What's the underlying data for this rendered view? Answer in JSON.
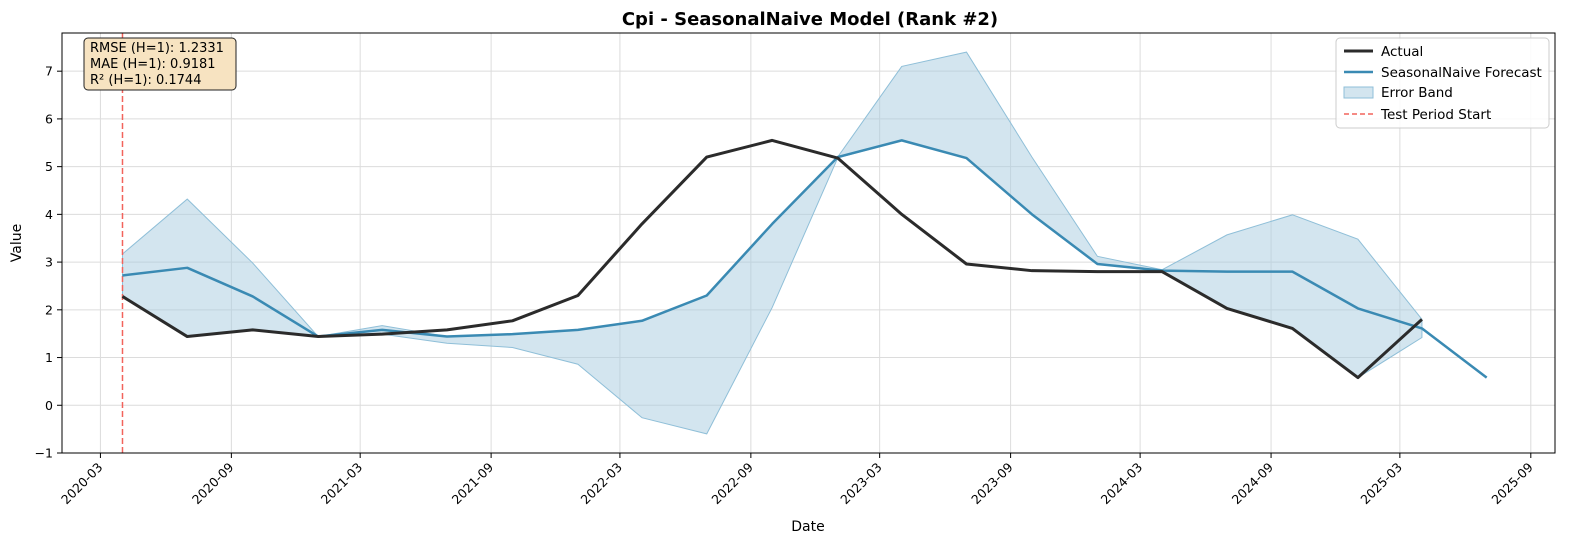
{
  "chart_data": {
    "type": "line",
    "title": "Cpi - SeasonalNaive Model (Rank #2)",
    "xlabel": "Date",
    "ylabel": "Value",
    "ylim": [
      -1,
      7.8
    ],
    "xlim": [
      "2020-01-07",
      "2025-10-05"
    ],
    "grid": true,
    "legend_position": "top-right",
    "x_ticks": [
      "2020-03",
      "2020-09",
      "2021-03",
      "2021-09",
      "2022-03",
      "2022-09",
      "2023-03",
      "2023-09",
      "2024-03",
      "2024-09",
      "2025-03",
      "2025-09"
    ],
    "y_ticks": [
      -1,
      0,
      1,
      2,
      3,
      4,
      5,
      6,
      7
    ],
    "colors": {
      "actual": "#2b2b2b",
      "forecast": "#3a8ab3",
      "band_fill": "#a8cce0",
      "band_edge": "#8fbfd8",
      "test_start": "#f2635c",
      "grid": "#dcdcdc",
      "metrics_box": "#f7e3c1"
    },
    "series": [
      {
        "name": "Actual",
        "x": [
          "2020-04-01",
          "2020-07-01",
          "2020-10-01",
          "2021-01-01",
          "2021-04-01",
          "2021-07-01",
          "2021-10-01",
          "2022-01-01",
          "2022-04-01",
          "2022-07-01",
          "2022-10-01",
          "2023-01-01",
          "2023-04-01",
          "2023-07-01",
          "2023-10-01",
          "2024-01-01",
          "2024-04-01",
          "2024-07-01",
          "2024-10-01",
          "2025-01-01",
          "2025-04-01"
        ],
        "y": [
          2.28,
          1.44,
          1.58,
          1.44,
          1.49,
          1.58,
          1.77,
          2.3,
          3.8,
          5.2,
          5.55,
          5.18,
          4.0,
          2.96,
          2.82,
          2.8,
          2.8,
          2.03,
          1.61,
          0.58,
          1.8
        ]
      },
      {
        "name": "SeasonalNaive Forecast",
        "x": [
          "2020-04-01",
          "2020-07-01",
          "2020-10-01",
          "2021-01-01",
          "2021-04-01",
          "2021-07-01",
          "2021-10-01",
          "2022-01-01",
          "2022-04-01",
          "2022-07-01",
          "2022-10-01",
          "2023-01-01",
          "2023-04-01",
          "2023-07-01",
          "2023-10-01",
          "2024-01-01",
          "2024-04-01",
          "2024-07-01",
          "2024-10-01",
          "2025-01-01",
          "2025-04-01",
          "2025-07-01"
        ],
        "y": [
          2.72,
          2.88,
          2.28,
          1.44,
          1.58,
          1.44,
          1.49,
          1.58,
          1.77,
          2.3,
          3.8,
          5.2,
          5.55,
          5.18,
          4.0,
          2.96,
          2.82,
          2.8,
          2.8,
          2.03,
          1.61,
          0.58
        ]
      }
    ],
    "error_band": {
      "name": "Error Band",
      "x": [
        "2020-04-01",
        "2020-07-01",
        "2020-10-01",
        "2021-01-01",
        "2021-04-01",
        "2021-07-01",
        "2021-10-01",
        "2022-01-01",
        "2022-04-01",
        "2022-07-01",
        "2022-10-01",
        "2023-01-01",
        "2023-04-01",
        "2023-07-01",
        "2023-10-01",
        "2024-01-01",
        "2024-04-01",
        "2024-07-01",
        "2024-10-01",
        "2025-01-01",
        "2025-04-01"
      ],
      "upper": [
        3.17,
        4.32,
        2.98,
        1.44,
        1.67,
        1.44,
        1.49,
        1.58,
        1.77,
        2.3,
        3.8,
        5.2,
        7.1,
        7.4,
        5.2,
        3.12,
        2.84,
        3.57,
        3.99,
        3.48,
        1.8
      ],
      "lower": [
        2.28,
        1.44,
        1.58,
        1.44,
        1.49,
        1.3,
        1.21,
        0.86,
        -0.26,
        -0.6,
        2.05,
        5.18,
        5.55,
        5.18,
        4.0,
        2.96,
        2.8,
        2.03,
        1.61,
        0.58,
        1.42
      ]
    },
    "test_period_start": "2020-04-01",
    "legend": {
      "actual": "Actual",
      "forecast": "SeasonalNaive Forecast",
      "band": "Error Band",
      "test_start": "Test Period Start"
    },
    "metrics": [
      "RMSE (H=1): 1.2331",
      "MAE (H=1): 0.9181",
      "R² (H=1): 0.1744"
    ]
  }
}
